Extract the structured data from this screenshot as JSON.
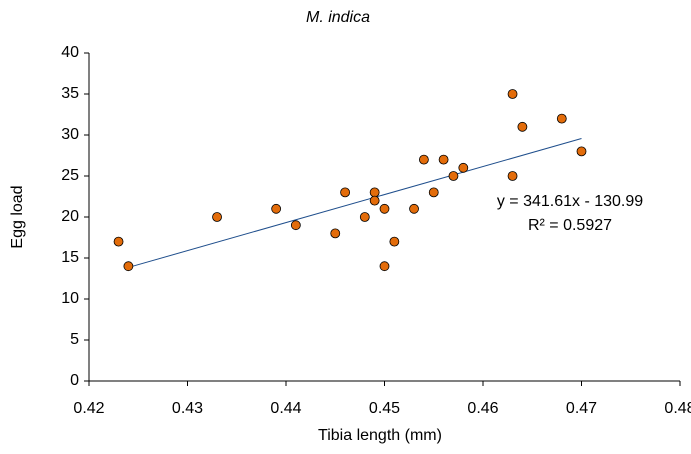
{
  "chart_data": {
    "type": "scatter",
    "title": "M. indica",
    "xlabel": "Tibia length (mm)",
    "ylabel": "Egg load",
    "series": [
      {
        "name": "Egg load",
        "color": "#e36c0a",
        "x": [
          0.423,
          0.424,
          0.433,
          0.439,
          0.441,
          0.445,
          0.446,
          0.448,
          0.449,
          0.449,
          0.45,
          0.45,
          0.451,
          0.453,
          0.454,
          0.455,
          0.456,
          0.457,
          0.458,
          0.463,
          0.463,
          0.464,
          0.468,
          0.47
        ],
        "values": [
          17,
          14,
          20,
          21,
          19,
          18,
          23,
          20,
          23,
          22,
          21,
          14,
          17,
          21,
          27,
          23,
          27,
          25,
          26,
          35,
          25,
          31,
          32,
          28
        ]
      }
    ],
    "trendline": {
      "color": "#1f4e8c",
      "x": [
        0.424,
        0.47
      ],
      "values": [
        13.85,
        29.57
      ],
      "equation": "y = 341.61x - 130.99",
      "r_squared": "R² = 0.5927"
    },
    "xlim": [
      0.42,
      0.48
    ],
    "xticks": [
      0.42,
      0.43,
      0.44,
      0.45,
      0.46,
      0.47,
      0.48
    ],
    "ylim": [
      0,
      40
    ],
    "yticks": [
      0,
      5,
      10,
      15,
      20,
      25,
      30,
      35,
      40
    ],
    "grid": false
  }
}
